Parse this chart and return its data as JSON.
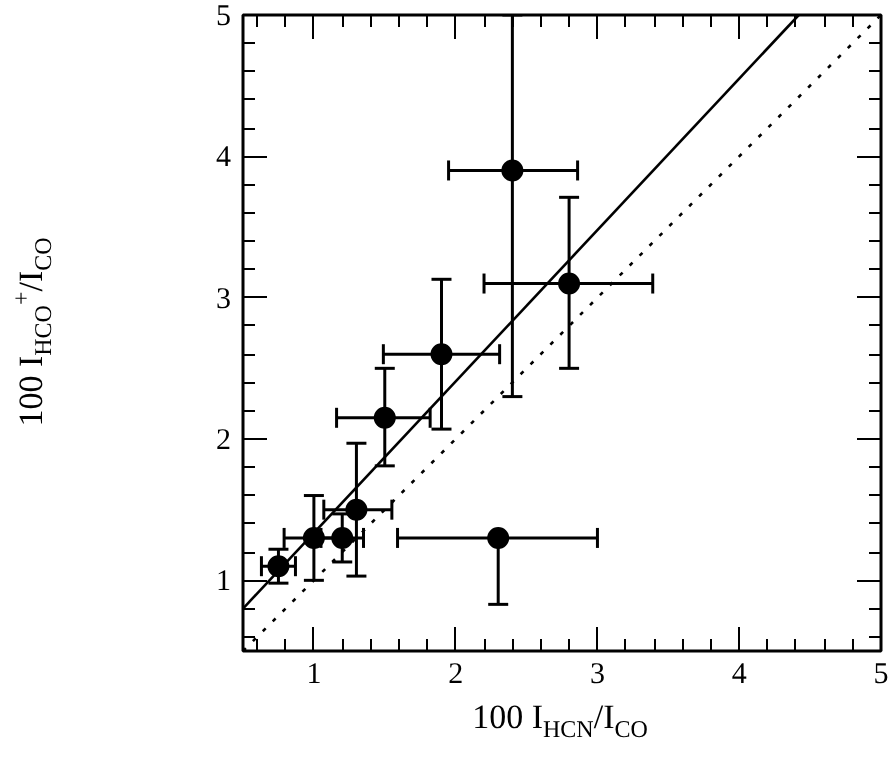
{
  "chart_data": {
    "type": "scatter",
    "xlabel": "100 I$_{HCN}$/I$_{CO}$",
    "ylabel": "100 I$_{HCO}$$^{+}$/I$_{CO}$",
    "grid": false,
    "tick_labels": "xy",
    "xlim": [
      0.5,
      5
    ],
    "ylim": [
      0.5,
      5
    ],
    "xticks": [
      {
        "value": 0.6,
        "label": null
      },
      {
        "value": 0.8,
        "label": null
      },
      1,
      {
        "value": 1.2,
        "label": null
      },
      {
        "value": 1.4,
        "label": null
      },
      {
        "value": 1.6,
        "label": null
      },
      {
        "value": 1.8,
        "label": null
      },
      2,
      {
        "value": 2.2,
        "label": null
      },
      {
        "value": 2.4,
        "label": null
      },
      {
        "value": 2.6,
        "label": null
      },
      {
        "value": 2.8,
        "label": null
      },
      3,
      {
        "value": 3.2,
        "label": null
      },
      {
        "value": 3.4,
        "label": null
      },
      {
        "value": 3.6,
        "label": null
      },
      {
        "value": 3.8,
        "label": null
      },
      4,
      {
        "value": 4.2,
        "label": null
      },
      {
        "value": 4.4,
        "label": null
      },
      {
        "value": 4.6,
        "label": null
      },
      {
        "value": 4.8,
        "label": null
      },
      5
    ],
    "yticks": [
      {
        "value": 0.6,
        "label": null
      },
      {
        "value": 0.8,
        "label": null
      },
      1,
      {
        "value": 1.2,
        "label": null
      },
      {
        "value": 1.4,
        "label": null
      },
      {
        "value": 1.6,
        "label": null
      },
      {
        "value": 1.8,
        "label": null
      },
      2,
      {
        "value": 2.2,
        "label": null
      },
      {
        "value": 2.4,
        "label": null
      },
      {
        "value": 2.6,
        "label": null
      },
      {
        "value": 2.8,
        "label": null
      },
      3,
      {
        "value": 3.2,
        "label": null
      },
      {
        "value": 3.4,
        "label": null
      },
      {
        "value": 3.6,
        "label": null
      },
      {
        "value": 3.8,
        "label": null
      },
      4,
      {
        "value": 4.2,
        "label": null
      },
      {
        "value": 4.4,
        "label": null
      },
      {
        "value": 4.6,
        "label": null
      },
      {
        "value": 4.8,
        "label": null
      },
      5
    ],
    "series": [
      {
        "type": "scatter",
        "marker": "circle",
        "color": "#000000",
        "x": [
          0.75,
          1.0,
          1.2,
          1.3,
          1.5,
          1.9,
          2.4,
          2.8,
          2.3
        ],
        "values": [
          1.1,
          1.3,
          1.3,
          1.5,
          2.15,
          2.6,
          3.9,
          3.1,
          1.3
        ],
        "errors": [
          0.12,
          [
            1.0,
            1.6
          ],
          0.17,
          [
            1.03,
            1.97
          ],
          [
            1.81,
            2.5
          ],
          [
            2.07,
            3.13
          ],
          [
            2.3,
            5.0
          ],
          [
            2.5,
            3.71
          ],
          [
            0.83,
            1.3
          ]
        ],
        "xerrors": [
          0.12,
          0.21,
          0.15,
          [
            1.07,
            1.55
          ],
          [
            1.16,
            1.82
          ],
          [
            1.49,
            2.31
          ],
          [
            1.95,
            2.86
          ],
          [
            2.2,
            3.39
          ],
          [
            1.59,
            3.0
          ]
        ]
      },
      {
        "type": "line",
        "color": "#000000",
        "line_style": "solid",
        "x": [
          0.5,
          4.42
        ],
        "values": [
          0.8,
          5.0
        ]
      },
      {
        "type": "line",
        "color": "#000000",
        "line_style": "dotted",
        "x": [
          0.5,
          5.0
        ],
        "values": [
          0.5,
          5.0
        ]
      }
    ]
  }
}
